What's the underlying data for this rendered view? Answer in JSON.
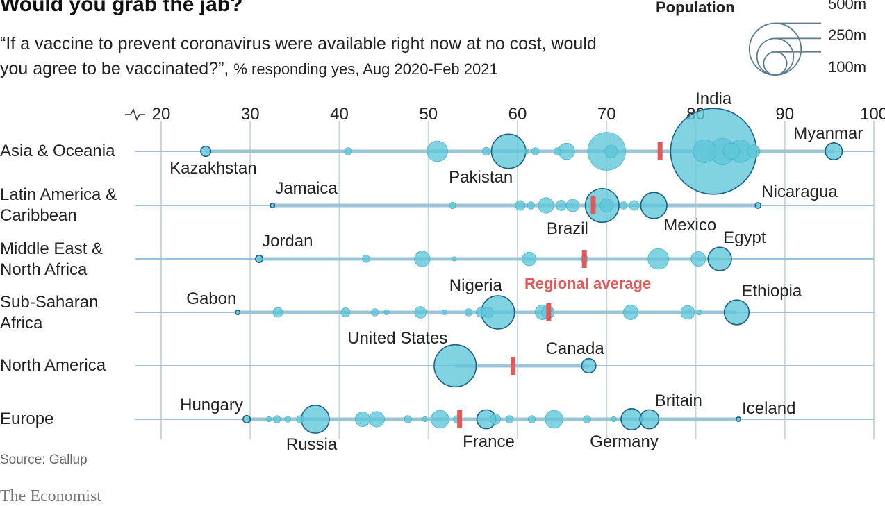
{
  "header": {
    "title": "Would you grab the jab?",
    "subtitle_main": "“If a vaccine to prevent coronavirus were available right now at no cost, would you agree to be vaccinated?”,",
    "subtitle_unit": "% responding yes, Aug 2020-Feb 2021"
  },
  "footer": {
    "source": "Source: Gallup",
    "brand": "The Economist"
  },
  "legend": {
    "title": "Population",
    "sizes": [
      {
        "label": "500m",
        "value": 500
      },
      {
        "label": "250m",
        "value": 250
      },
      {
        "label": "100m",
        "value": 100
      }
    ]
  },
  "colors": {
    "bubble_fill": "#5fc6d8",
    "bubble_stroke": "#1a5f86",
    "line": "#9ac5d8",
    "grid": "#c9d6df",
    "average": "#e05a5a",
    "text": "#222222"
  },
  "chart_data": {
    "type": "scatter",
    "xlim": [
      20,
      100
    ],
    "xticks": [
      20,
      30,
      40,
      50,
      60,
      70,
      80,
      90,
      100
    ],
    "axis_break": true,
    "average_label": "Regional average",
    "regions": [
      {
        "name": "Asia & Oceania",
        "label_lines": [
          "Asia & Oceania"
        ],
        "average": 76,
        "countries": [
          {
            "name": "Kazakhstan",
            "value": 25,
            "pop": 19
          },
          {
            "value": 41,
            "pop": 10
          },
          {
            "value": 51,
            "pop": 80
          },
          {
            "value": 56.5,
            "pop": 12
          },
          {
            "name": "Pakistan",
            "value": 59,
            "pop": 220
          },
          {
            "value": 61,
            "pop": 5
          },
          {
            "value": 62,
            "pop": 10
          },
          {
            "value": 64.5,
            "pop": 10
          },
          {
            "value": 65.5,
            "pop": 50
          },
          {
            "value": 70,
            "pop": 270
          },
          {
            "value": 70.5,
            "pop": 30
          },
          {
            "name": "India",
            "value": 82,
            "pop": 1380
          },
          {
            "value": 81,
            "pop": 100
          },
          {
            "value": 83,
            "pop": 125
          },
          {
            "value": 84,
            "pop": 50
          },
          {
            "value": 85,
            "pop": 95
          },
          {
            "value": 86.5,
            "pop": 30
          },
          {
            "name": "Myanmar",
            "value": 95.5,
            "pop": 54
          }
        ]
      },
      {
        "name": "Latin America & Caribbean",
        "label_lines": [
          "Latin America &",
          "Caribbean"
        ],
        "average": 68.5,
        "countries": [
          {
            "name": "Jamaica",
            "value": 32.5,
            "pop": 3
          },
          {
            "value": 52.7,
            "pop": 8
          },
          {
            "value": 60.3,
            "pop": 18
          },
          {
            "value": 61.5,
            "pop": 10
          },
          {
            "value": 63.2,
            "pop": 45
          },
          {
            "value": 64.9,
            "pop": 20
          },
          {
            "value": 66.2,
            "pop": 30
          },
          {
            "name": "Brazil",
            "value": 69.5,
            "pop": 212
          },
          {
            "value": 70,
            "pop": 33
          },
          {
            "value": 71.9,
            "pop": 10
          },
          {
            "value": 73.1,
            "pop": 18
          },
          {
            "name": "Mexico",
            "value": 75.3,
            "pop": 128
          },
          {
            "name": "Nicaragua",
            "value": 87,
            "pop": 6
          }
        ]
      },
      {
        "name": "Middle East & North Africa",
        "label_lines": [
          "Middle East &",
          "North Africa"
        ],
        "average": 67.5,
        "countries": [
          {
            "name": "Jordan",
            "value": 31,
            "pop": 10
          },
          {
            "value": 43,
            "pop": 10
          },
          {
            "value": 49.3,
            "pop": 45
          },
          {
            "value": 52.9,
            "pop": 2
          },
          {
            "value": 61.3,
            "pop": 35
          },
          {
            "value": 67.5,
            "pop": 10
          },
          {
            "value": 75.8,
            "pop": 80
          },
          {
            "value": 80.3,
            "pop": 40
          },
          {
            "name": "Egypt",
            "value": 82.7,
            "pop": 102
          }
        ]
      },
      {
        "name": "Sub-Saharan Africa",
        "label_lines": [
          "Sub-Saharan",
          "Africa"
        ],
        "average": 63.5,
        "countries": [
          {
            "name": "Gabon",
            "value": 28.6,
            "pop": 2
          },
          {
            "value": 33.1,
            "pop": 18
          },
          {
            "value": 40.7,
            "pop": 15
          },
          {
            "value": 44,
            "pop": 10
          },
          {
            "value": 45.3,
            "pop": 5
          },
          {
            "value": 49.1,
            "pop": 25
          },
          {
            "value": 51.8,
            "pop": 5
          },
          {
            "value": 54.5,
            "pop": 10
          },
          {
            "value": 55.9,
            "pop": 18
          },
          {
            "value": 56.7,
            "pop": 20
          },
          {
            "name": "Nigeria",
            "value": 57.8,
            "pop": 206
          },
          {
            "value": 62.8,
            "pop": 40
          },
          {
            "value": 63.4,
            "pop": 30
          },
          {
            "value": 72.7,
            "pop": 40
          },
          {
            "value": 79.1,
            "pop": 35
          },
          {
            "value": 80.4,
            "pop": 5
          },
          {
            "name": "Ethiopia",
            "value": 84.6,
            "pop": 115
          }
        ]
      },
      {
        "name": "North America",
        "label_lines": [
          "North America"
        ],
        "average": 59.5,
        "countries": [
          {
            "name": "United States",
            "value": 53,
            "pop": 331
          },
          {
            "name": "Canada",
            "value": 68,
            "pop": 38
          }
        ]
      },
      {
        "name": "Europe",
        "label_lines": [
          "Europe"
        ],
        "average": 53.5,
        "countries": [
          {
            "name": "Hungary",
            "value": 29.6,
            "pop": 10
          },
          {
            "value": 32.1,
            "pop": 5
          },
          {
            "value": 33,
            "pop": 10
          },
          {
            "value": 34.2,
            "pop": 7
          },
          {
            "value": 35.6,
            "pop": 10
          },
          {
            "name": "Russia",
            "value": 37.3,
            "pop": 146
          },
          {
            "value": 42.6,
            "pop": 40
          },
          {
            "value": 44.2,
            "pop": 45
          },
          {
            "value": 47.7,
            "pop": 10
          },
          {
            "value": 49.6,
            "pop": 5
          },
          {
            "value": 51.3,
            "pop": 60
          },
          {
            "value": 53.2,
            "pop": 10
          },
          {
            "name": "France",
            "value": 56.5,
            "pop": 67
          },
          {
            "value": 57.5,
            "pop": 20
          },
          {
            "value": 59.1,
            "pop": 10
          },
          {
            "value": 61.6,
            "pop": 10
          },
          {
            "value": 64.1,
            "pop": 60
          },
          {
            "value": 67.8,
            "pop": 10
          },
          {
            "value": 70.8,
            "pop": 5
          },
          {
            "name": "Germany",
            "value": 72.8,
            "pop": 83
          },
          {
            "name": "Britain",
            "value": 74.8,
            "pop": 67
          },
          {
            "name": "Iceland",
            "value": 84.8,
            "pop": 1
          }
        ]
      }
    ]
  }
}
